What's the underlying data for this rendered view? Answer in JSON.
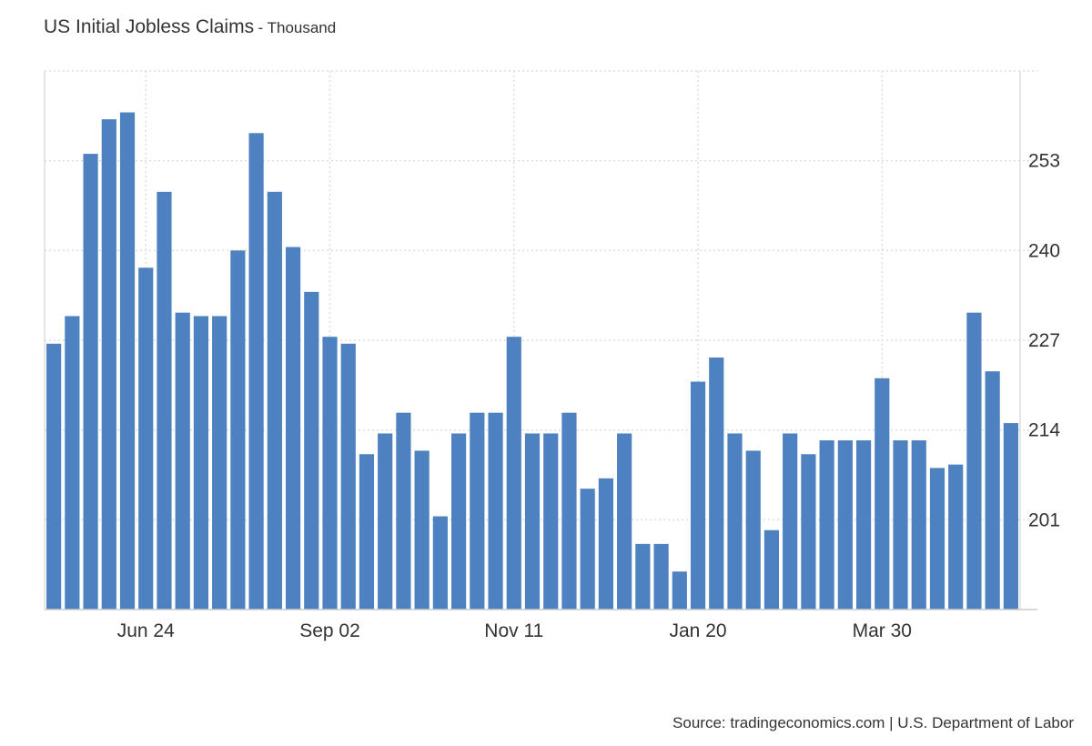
{
  "header": {
    "title": "US Initial Jobless Claims",
    "subtitle": "- Thousand"
  },
  "footer": {
    "source": "Source: tradingeconomics.com | U.S. Department of Labor"
  },
  "colors": {
    "bar": "#4d81bf",
    "grid": "#dddddd",
    "axis": "#cccccc"
  },
  "chart_data": {
    "type": "bar",
    "title": "US Initial Jobless Claims",
    "subtitle": "Thousand",
    "xlabel": "",
    "ylabel": "",
    "ylim": [
      188,
      266
    ],
    "y_ticks": [
      201,
      214,
      227,
      240,
      253
    ],
    "x_tick_labels": [
      {
        "label": "Jun 24",
        "index": 5
      },
      {
        "label": "Sep 02",
        "index": 15
      },
      {
        "label": "Nov 11",
        "index": 25
      },
      {
        "label": "Jan 20",
        "index": 35
      },
      {
        "label": "Mar 30",
        "index": 45
      }
    ],
    "grid": true,
    "y_axis_position": "right",
    "values": [
      226.5,
      230.5,
      254,
      259,
      260,
      237.5,
      248.5,
      231,
      230.5,
      230.5,
      240,
      257,
      248.5,
      240.5,
      234,
      227.5,
      226.5,
      210.5,
      213.5,
      216.5,
      211,
      201.5,
      213.5,
      216.5,
      216.5,
      227.5,
      213.5,
      213.5,
      216.5,
      205.5,
      207,
      213.5,
      197.5,
      197.5,
      193.5,
      221,
      224.5,
      213.5,
      211,
      199.5,
      213.5,
      210.5,
      212.5,
      212.5,
      212.5,
      221.5,
      212.5,
      212.5,
      208.5,
      209,
      231,
      222.5,
      215
    ]
  }
}
